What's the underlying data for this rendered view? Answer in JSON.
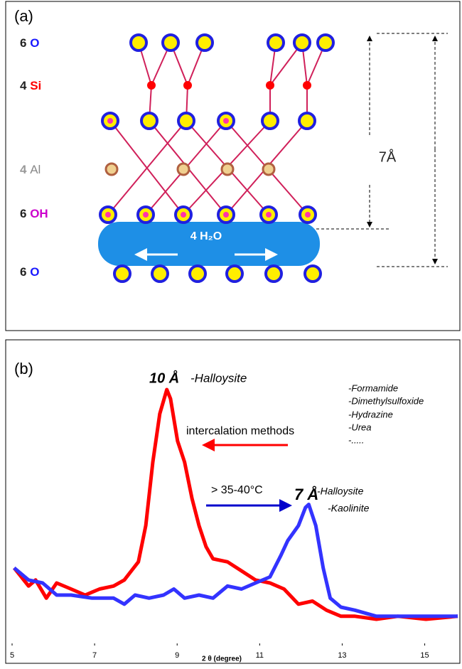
{
  "diagram": {
    "label": "(a)",
    "layers": [
      {
        "count": "6",
        "atom": "O"
      },
      {
        "count": "4",
        "atom": "Si"
      },
      {
        "count": "4",
        "atom": "Al"
      },
      {
        "count": "6",
        "atom": "OH"
      },
      {
        "count": "6",
        "atom": "O"
      }
    ],
    "water": "4 H₂O",
    "spacing": "7Å"
  },
  "chart_data": {
    "type": "line",
    "label": "(b)",
    "xlabel": "2 θ (degree)",
    "xlim": [
      5,
      15.8
    ],
    "xticks": [
      5,
      7,
      9,
      11,
      13,
      15
    ],
    "ylim": [
      0,
      100
    ],
    "annotations": [
      "10 Å",
      "-Halloysite",
      "-Formamide",
      "-Dimethylsulfoxide",
      "-Hydrazine",
      "-Urea",
      "-.....",
      "intercalation methods",
      "> 35-40°C",
      "7 Å",
      "-Halloysite",
      "-Kaolinite"
    ],
    "series": [
      {
        "color": "#ff0000",
        "x": [
          5.05,
          5.4,
          5.57,
          5.83,
          6.08,
          6.43,
          6.77,
          7.12,
          7.46,
          7.72,
          7.89,
          8.06,
          8.24,
          8.41,
          8.58,
          8.75,
          8.84,
          9.01,
          9.18,
          9.36,
          9.53,
          9.7,
          9.87,
          10.22,
          10.56,
          10.9,
          11.25,
          11.59,
          11.94,
          12.28,
          12.62,
          12.97,
          13.31,
          13.83,
          14.35,
          15.03,
          15.8
        ],
        "values": [
          25,
          19,
          21,
          15,
          20,
          18,
          16,
          18,
          19,
          21,
          24,
          27,
          39,
          60,
          76,
          84,
          81,
          67,
          60,
          48,
          39,
          32,
          28,
          27,
          24,
          21,
          20,
          18,
          13,
          14,
          11,
          9,
          9,
          8,
          9,
          8,
          9
        ]
      },
      {
        "color": "#3333ff",
        "x": [
          5.05,
          5.4,
          5.74,
          6.08,
          6.43,
          6.94,
          7.46,
          7.72,
          7.98,
          8.32,
          8.67,
          8.92,
          9.18,
          9.53,
          9.87,
          10.22,
          10.56,
          10.9,
          11.25,
          11.51,
          11.68,
          11.94,
          12.11,
          12.19,
          12.36,
          12.54,
          12.71,
          12.97,
          13.31,
          13.83,
          14.35,
          15.03,
          15.8
        ],
        "values": [
          25,
          21,
          20,
          16,
          16,
          15,
          15,
          13,
          16,
          15,
          16,
          18,
          15,
          16,
          15,
          19,
          18,
          20,
          22,
          29,
          34,
          39,
          45,
          46,
          39,
          25,
          15,
          12,
          11,
          9,
          9,
          9,
          9
        ]
      }
    ]
  }
}
